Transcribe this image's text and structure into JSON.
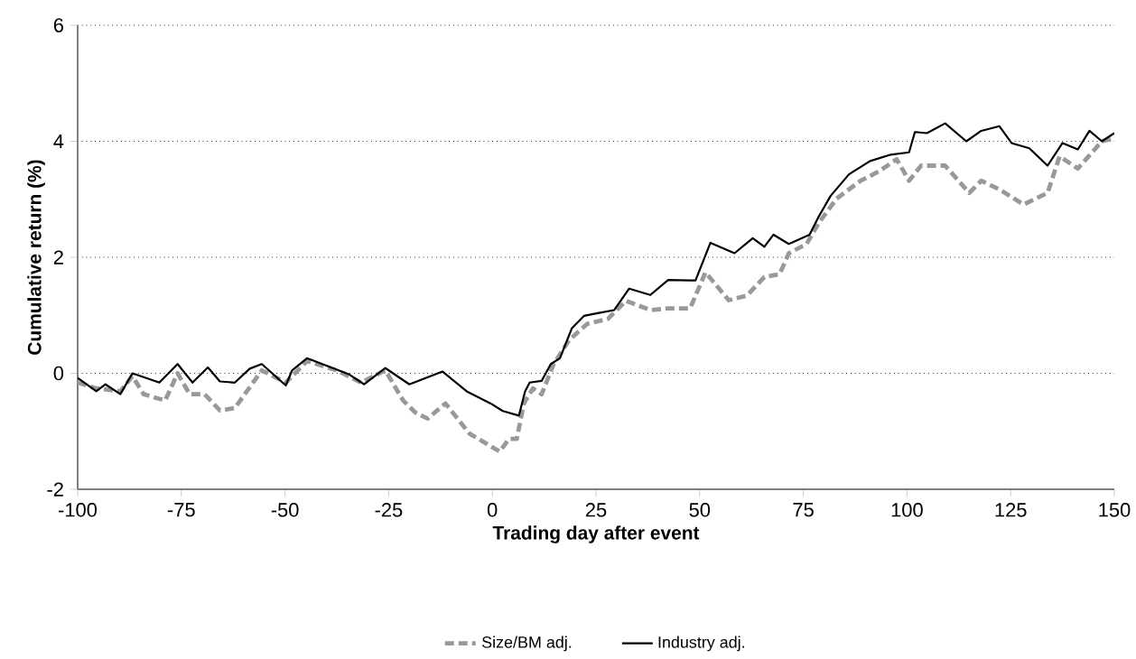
{
  "chart_data": {
    "type": "line",
    "xlabel": "Trading day after event",
    "ylabel": "Cumulative return (%)",
    "xlim": [
      -100,
      150
    ],
    "xticks": [
      -100,
      -75,
      -50,
      -25,
      0,
      25,
      50,
      75,
      100,
      125,
      150
    ],
    "ylim": [
      -2,
      6
    ],
    "yticks": [
      -2,
      0,
      2,
      4,
      6
    ],
    "grid": "y",
    "legend": "bottom",
    "series": [
      {
        "name": "Size/BM adj.",
        "color": "#999999",
        "line_style": "dashed",
        "x": [
          -100,
          -95.5,
          -89.7,
          -86.8,
          -84.1,
          -78.9,
          -75.9,
          -73,
          -69.4,
          -65.7,
          -62.1,
          -59.2,
          -55.6,
          -49.8,
          -44.7,
          -37.5,
          -31.7,
          -25.8,
          -21.5,
          -18.5,
          -15.6,
          -11.3,
          -5.5,
          1.8,
          4,
          5.9,
          7.6,
          9.8,
          11.9,
          14.8,
          18.5,
          22.8,
          27.9,
          32.2,
          38.1,
          42.4,
          47.7,
          51.4,
          57,
          61.4,
          65.6,
          69.3,
          71.5,
          75.8,
          78.7,
          83,
          88.8,
          93.2,
          97.5,
          100.5,
          103.4,
          109.2,
          115,
          117.9,
          122.3,
          128.1,
          133.9,
          136.8,
          141.2,
          147,
          150
        ],
        "values": [
          -0.16,
          -0.26,
          -0.31,
          -0.05,
          -0.36,
          -0.47,
          0,
          -0.36,
          -0.36,
          -0.64,
          -0.6,
          -0.31,
          0.05,
          -0.16,
          0.21,
          0.05,
          -0.16,
          0.05,
          -0.47,
          -0.68,
          -0.78,
          -0.52,
          -1.04,
          -1.35,
          -1.13,
          -1.13,
          -0.52,
          -0.26,
          -0.36,
          0.16,
          0.57,
          0.85,
          0.94,
          1.25,
          1.09,
          1.12,
          1.12,
          1.74,
          1.26,
          1.34,
          1.66,
          1.71,
          2.07,
          2.23,
          2.59,
          3.01,
          3.32,
          3.48,
          3.69,
          3.32,
          3.58,
          3.58,
          3.11,
          3.32,
          3.17,
          2.91,
          3.11,
          3.74,
          3.53,
          4,
          4.05
        ]
      },
      {
        "name": "Industry adj.",
        "color": "#000000",
        "line_style": "solid",
        "x": [
          -100,
          -95.5,
          -93.3,
          -89.7,
          -86.8,
          -80.3,
          -75.9,
          -72.3,
          -68.6,
          -65.7,
          -62.1,
          -58.5,
          -55.6,
          -49.8,
          -48.3,
          -44.7,
          -38.9,
          -34.5,
          -30.9,
          -25.8,
          -20,
          -12,
          -6.2,
          -0.4,
          2.5,
          6.4,
          7.9,
          9,
          11.9,
          14.1,
          16.3,
          19.2,
          22.1,
          25.7,
          29.4,
          33,
          38.1,
          42.4,
          49,
          52.6,
          58.4,
          62.8,
          65.6,
          67.8,
          71.5,
          76.5,
          78.7,
          81.6,
          86,
          91.1,
          96.1,
          100.5,
          101.9,
          104.8,
          109.2,
          114.3,
          117.9,
          122.3,
          125.2,
          129.5,
          133.9,
          137.5,
          141.2,
          144,
          147,
          150
        ],
        "values": [
          -0.08,
          -0.31,
          -0.19,
          -0.36,
          0,
          -0.16,
          0.16,
          -0.16,
          0.1,
          -0.14,
          -0.16,
          0.08,
          0.16,
          -0.21,
          0.05,
          0.26,
          0.1,
          -0.02,
          -0.19,
          0.09,
          -0.19,
          0.03,
          -0.31,
          -0.52,
          -0.65,
          -0.73,
          -0.31,
          -0.16,
          -0.13,
          0.16,
          0.26,
          0.78,
          0.99,
          1.04,
          1.09,
          1.46,
          1.35,
          1.61,
          1.6,
          2.25,
          2.07,
          2.33,
          2.18,
          2.39,
          2.23,
          2.39,
          2.7,
          3.06,
          3.43,
          3.66,
          3.77,
          3.81,
          4.16,
          4.14,
          4.31,
          4,
          4.18,
          4.26,
          3.97,
          3.88,
          3.58,
          3.97,
          3.86,
          4.18,
          4,
          4.14
        ]
      }
    ]
  }
}
